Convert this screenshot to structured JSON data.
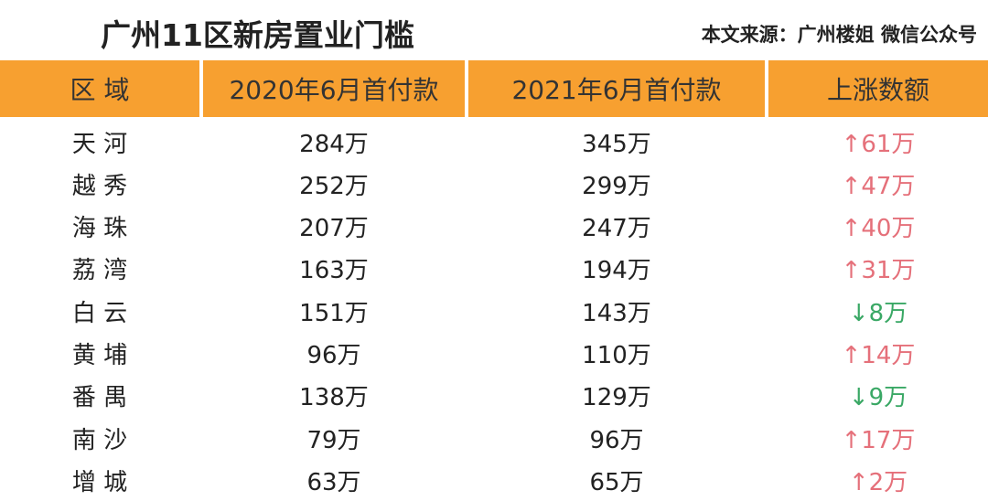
{
  "header": {
    "title": "广州11区新房置业门槛",
    "source": "本文来源：广州楼姐 微信公众号"
  },
  "table": {
    "columns": [
      "区 域",
      "2020年6月首付款",
      "2021年6月首付款",
      "上涨数额"
    ],
    "rows": [
      [
        "天 河",
        "284万",
        "345万",
        "↑61万"
      ],
      [
        "越 秀",
        "252万",
        "299万",
        "↑47万"
      ],
      [
        "海 珠",
        "207万",
        "247万",
        "↑40万"
      ],
      [
        "荔 湾",
        "163万",
        "194万",
        "↑31万"
      ],
      [
        "白 云",
        "151万",
        "143万",
        "↓8万"
      ],
      [
        "黄 埔",
        "96万",
        "110万",
        "↑14万"
      ],
      [
        "番 禺",
        "138万",
        "129万",
        "↓9万"
      ],
      [
        "南 沙",
        "79万",
        "96万",
        "↑17万"
      ],
      [
        "增 城",
        "63万",
        "65万",
        "↑2万"
      ]
    ]
  }
}
